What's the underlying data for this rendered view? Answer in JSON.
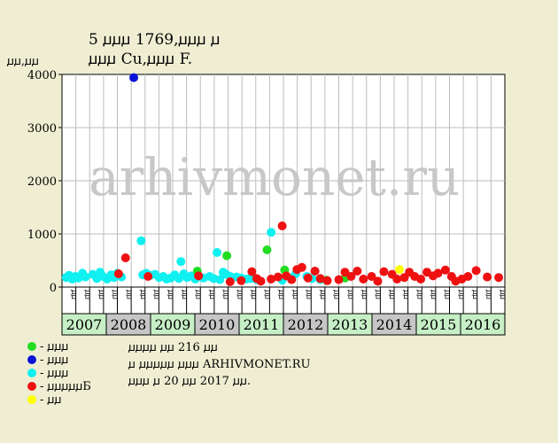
{
  "title_line1": "5 ꙡꙡꙡ 1769,ꙡꙡꙡ ꙡ",
  "title_line2": "ꙡꙡꙡ Cu,ꙡꙡꙡ F.",
  "y_unit": "ꙡꙡ,ꙡꙡ",
  "watermark": "arhivmonet.ru",
  "colors": {
    "background": "#efeed3",
    "plot_bg": "#ffffff",
    "grid": "#bdbdbd",
    "green": "#22dd22",
    "blue": "#0a14d8",
    "cyan": "#10f0f0",
    "red": "#ee1111",
    "yellow": "#ffff00"
  },
  "legend": [
    {
      "color": "green",
      "text": "- ꙡꙡꙡ"
    },
    {
      "color": "blue",
      "text": "- ꙡꙡꙡ"
    },
    {
      "color": "cyan",
      "text": "- ꙡꙡꙡ"
    },
    {
      "color": "red",
      "text": "- ꙡꙡꙡꙡꙡБ"
    },
    {
      "color": "yellow",
      "text": "- ꙡꙡ"
    }
  ],
  "info": [
    "ꙡꙡꙡꙡ ꙡꙡ 216 ꙡꙡ",
    "ꙡ ꙡꙡꙡꙡꙡ ꙡꙡꙡ ARHIVMONET.RU",
    "ꙡꙡꙡ ꙡ 20 ꙡꙡ 2017 ꙡꙡ."
  ],
  "chart_data": {
    "type": "scatter",
    "x_unit": "year",
    "xlim": [
      2006.45,
      2017.25
    ],
    "ylim": [
      0,
      4000
    ],
    "y_ticks": [
      0,
      1000,
      2000,
      3000,
      4000
    ],
    "grid": true,
    "years": [
      {
        "label": "2007",
        "value": 2007
      },
      {
        "label": "2008",
        "value": 2008
      },
      {
        "label": "2009",
        "value": 2009
      },
      {
        "label": "2010",
        "value": 2010
      },
      {
        "label": "2011",
        "value": 2011
      },
      {
        "label": "2012",
        "value": 2012
      },
      {
        "label": "2013",
        "value": 2013
      },
      {
        "label": "2014",
        "value": 2014
      },
      {
        "label": "2015",
        "value": 2015
      },
      {
        "label": "2016",
        "value": 2016
      }
    ],
    "quarter_labels": [
      "ꙡꙡ",
      "ꙡꙡ",
      "ꙡꙡ",
      "ꙡꙡ",
      "ꙡꙡ",
      "ꙡꙡ",
      "ꙡꙡ",
      "ꙡꙡ",
      "ꙡꙡ",
      "ꙡꙡ",
      "ꙡꙡ",
      "ꙡꙡ",
      "ꙡꙡ",
      "ꙡꙡ",
      "ꙡꙡ",
      "ꙡꙡ",
      "ꙡꙡ",
      "ꙡꙡ",
      "ꙡꙡ",
      "ꙡꙡ",
      "ꙡꙡ",
      "ꙡꙡ",
      "ꙡꙡ",
      "ꙡꙡ",
      "ꙡꙡ",
      "ꙡꙡ",
      "ꙡꙡ",
      "ꙡꙡ",
      "ꙡꙡ",
      "ꙡꙡ",
      "ꙡꙡ",
      "ꙡꙡ"
    ],
    "series": [
      {
        "color": "cyan",
        "points": [
          [
            2006.55,
            180
          ],
          [
            2006.62,
            220
          ],
          [
            2006.7,
            150
          ],
          [
            2006.78,
            200
          ],
          [
            2006.85,
            170
          ],
          [
            2006.95,
            260
          ],
          [
            2007.02,
            190
          ],
          [
            2007.2,
            240
          ],
          [
            2007.3,
            160
          ],
          [
            2007.38,
            280
          ],
          [
            2007.45,
            200
          ],
          [
            2007.55,
            150
          ],
          [
            2007.65,
            230
          ],
          [
            2007.72,
            180
          ],
          [
            2007.8,
            260
          ],
          [
            2007.9,
            190
          ],
          [
            2008.38,
            870
          ],
          [
            2008.42,
            230
          ],
          [
            2008.5,
            260
          ],
          [
            2008.6,
            220
          ],
          [
            2008.72,
            240
          ],
          [
            2008.82,
            180
          ],
          [
            2008.92,
            200
          ],
          [
            2009.0,
            150
          ],
          [
            2009.1,
            170
          ],
          [
            2009.2,
            230
          ],
          [
            2009.3,
            160
          ],
          [
            2009.35,
            480
          ],
          [
            2009.42,
            250
          ],
          [
            2009.5,
            180
          ],
          [
            2009.6,
            210
          ],
          [
            2009.7,
            150
          ],
          [
            2009.8,
            200
          ],
          [
            2009.9,
            170
          ],
          [
            2010.05,
            200
          ],
          [
            2010.15,
            160
          ],
          [
            2010.23,
            650
          ],
          [
            2010.3,
            140
          ],
          [
            2010.38,
            280
          ],
          [
            2010.45,
            240
          ],
          [
            2010.55,
            200
          ],
          [
            2010.7,
            190
          ],
          [
            2010.82,
            170
          ],
          [
            2010.95,
            150
          ],
          [
            2011.05,
            160
          ],
          [
            2011.2,
            140
          ],
          [
            2011.55,
            1030
          ],
          [
            2011.82,
            130
          ],
          [
            2012.05,
            170
          ],
          [
            2012.15,
            250
          ],
          [
            2012.42,
            200
          ],
          [
            2012.55,
            160
          ],
          [
            2012.75,
            140
          ]
        ]
      },
      {
        "color": "blue",
        "points": [
          [
            2008.2,
            3940
          ]
        ]
      },
      {
        "color": "green",
        "points": [
          [
            2009.75,
            300
          ],
          [
            2010.47,
            590
          ],
          [
            2011.45,
            700
          ],
          [
            2011.88,
            320
          ],
          [
            2012.9,
            130
          ],
          [
            2013.35,
            170
          ]
        ]
      },
      {
        "color": "red",
        "points": [
          [
            2007.83,
            250
          ],
          [
            2008.0,
            550
          ],
          [
            2008.55,
            200
          ],
          [
            2009.78,
            210
          ],
          [
            2010.55,
            100
          ],
          [
            2010.82,
            120
          ],
          [
            2011.08,
            290
          ],
          [
            2011.2,
            160
          ],
          [
            2011.3,
            110
          ],
          [
            2011.55,
            150
          ],
          [
            2011.72,
            190
          ],
          [
            2011.82,
            1150
          ],
          [
            2011.92,
            210
          ],
          [
            2012.05,
            140
          ],
          [
            2012.18,
            330
          ],
          [
            2012.3,
            370
          ],
          [
            2012.45,
            170
          ],
          [
            2012.62,
            300
          ],
          [
            2012.75,
            160
          ],
          [
            2012.92,
            120
          ],
          [
            2013.2,
            140
          ],
          [
            2013.35,
            280
          ],
          [
            2013.5,
            200
          ],
          [
            2013.65,
            300
          ],
          [
            2013.8,
            150
          ],
          [
            2014.0,
            200
          ],
          [
            2014.15,
            110
          ],
          [
            2014.3,
            290
          ],
          [
            2014.5,
            240
          ],
          [
            2014.62,
            150
          ],
          [
            2014.8,
            180
          ],
          [
            2014.92,
            280
          ],
          [
            2015.05,
            200
          ],
          [
            2015.2,
            150
          ],
          [
            2015.35,
            280
          ],
          [
            2015.5,
            210
          ],
          [
            2015.62,
            260
          ],
          [
            2015.8,
            320
          ],
          [
            2015.95,
            200
          ],
          [
            2016.05,
            110
          ],
          [
            2016.2,
            150
          ],
          [
            2016.35,
            200
          ],
          [
            2016.55,
            310
          ],
          [
            2016.82,
            190
          ],
          [
            2017.1,
            180
          ]
        ]
      },
      {
        "color": "yellow",
        "points": [
          [
            2014.68,
            330
          ]
        ]
      }
    ]
  }
}
